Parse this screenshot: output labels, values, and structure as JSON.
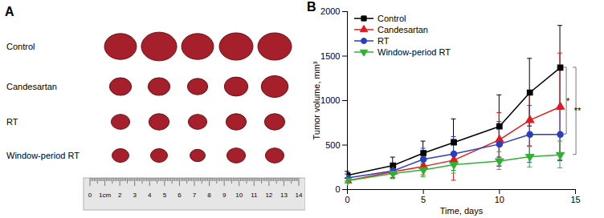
{
  "panel_a": {
    "panel_label": "A",
    "rows": [
      "Control",
      "Candesartan",
      "RT",
      "Window-period RT"
    ],
    "ruler_labels": [
      "0",
      "1cm",
      "2",
      "3",
      "4",
      "5",
      "6",
      "7",
      "8",
      "9",
      "10",
      "11",
      "12",
      "13",
      "14"
    ]
  },
  "chart_data": {
    "type": "line",
    "panel_label": "B",
    "x_label": "Time, days",
    "y_label": "Tumor volume, mm³",
    "x": [
      0,
      3,
      5,
      7,
      10,
      12,
      14
    ],
    "series": [
      {
        "name": "Control",
        "color": "#000000",
        "marker": "square",
        "values": [
          160,
          270,
          410,
          530,
          710,
          1090,
          1370
        ],
        "errors": [
          40,
          90,
          130,
          260,
          350,
          380,
          470
        ]
      },
      {
        "name": "Candesartan",
        "color": "#e31a1c",
        "marker": "triangle",
        "values": [
          100,
          200,
          260,
          330,
          560,
          780,
          930
        ],
        "errors": [
          30,
          80,
          100,
          230,
          300,
          300,
          600
        ]
      },
      {
        "name": "RT",
        "color": "#2a3fbf",
        "marker": "circle",
        "values": [
          130,
          210,
          340,
          400,
          510,
          620,
          620
        ],
        "errors": [
          40,
          80,
          120,
          190,
          250,
          320,
          300
        ]
      },
      {
        "name": "Window-period RT",
        "color": "#33b033",
        "marker": "triangle-down",
        "values": [
          100,
          180,
          220,
          280,
          320,
          370,
          390
        ],
        "errors": [
          30,
          60,
          80,
          100,
          100,
          120,
          150
        ]
      }
    ],
    "xlim": [
      0,
      15
    ],
    "xticks": [
      0,
      5,
      10,
      15
    ],
    "ylim": [
      0,
      2000
    ],
    "yticks": [
      0,
      500,
      1000,
      1500,
      2000
    ],
    "legend": "top-left",
    "grid": false,
    "annotations": [
      {
        "text": "*",
        "between": [
          "Control",
          "RT"
        ]
      },
      {
        "text": "**",
        "between": [
          "Control",
          "Window-period RT"
        ]
      }
    ]
  }
}
